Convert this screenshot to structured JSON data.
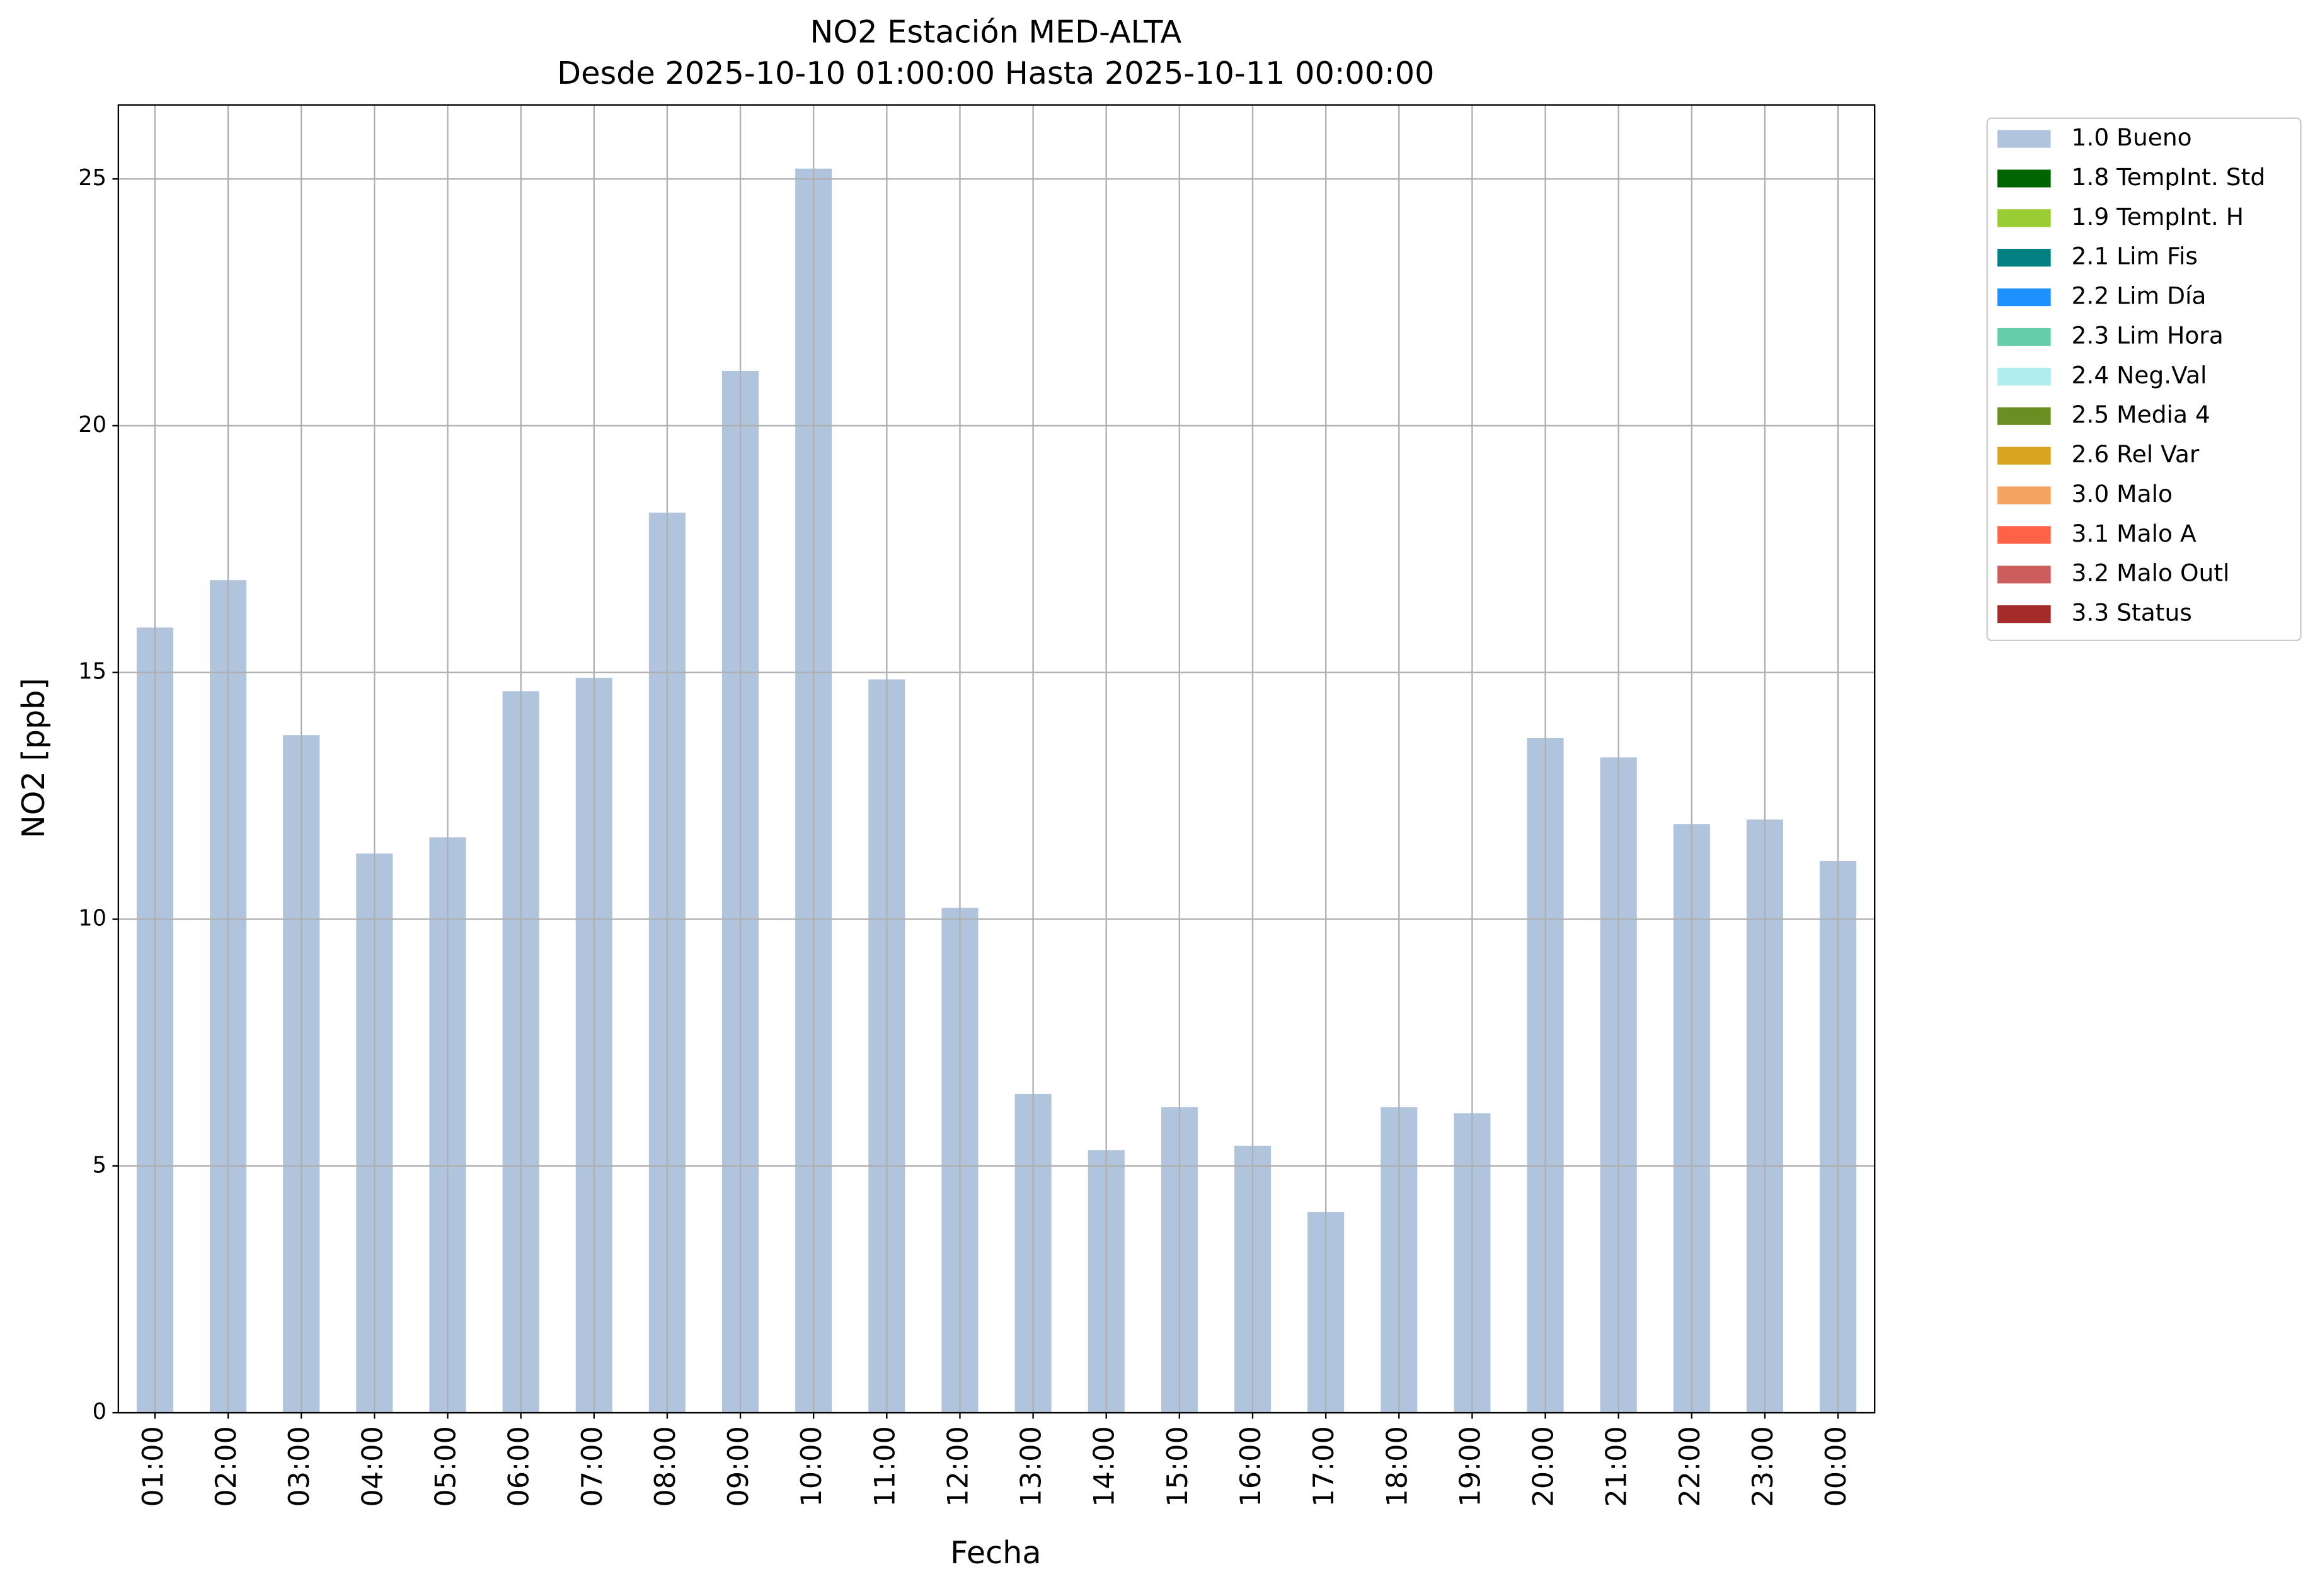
{
  "chart_data": {
    "type": "stacked_bar",
    "title": "NO2 Estación MED-ALTA",
    "subtitle": "Desde 2025-10-10 01:00:00 Hasta 2025-10-11 00:00:00",
    "x_label": "Fecha",
    "y_label": "NO2 [ppb]",
    "categories": [
      "01:00",
      "02:00",
      "03:00",
      "04:00",
      "05:00",
      "06:00",
      "07:00",
      "08:00",
      "09:00",
      "10:00",
      "11:00",
      "12:00",
      "13:00",
      "14:00",
      "15:00",
      "16:00",
      "17:00",
      "18:00",
      "19:00",
      "20:00",
      "21:00",
      "22:00",
      "23:00",
      "00:00"
    ],
    "series": [
      {
        "name": "1.0 Bueno",
        "color": "#b0c4de",
        "values": [
          15.91,
          16.87,
          13.73,
          11.33,
          11.66,
          14.62,
          14.89,
          18.24,
          21.11,
          25.21,
          14.86,
          10.23,
          6.46,
          5.32,
          6.19,
          5.41,
          4.07,
          6.19,
          6.07,
          13.67,
          13.28,
          11.93,
          12.02,
          11.18
        ]
      },
      {
        "name": "1.8 TempInt. Std",
        "color": "#006400",
        "values": [
          0,
          0,
          0,
          0,
          0,
          0,
          0,
          0,
          0,
          0,
          0,
          0,
          0,
          0,
          0,
          0,
          0,
          0,
          0,
          0,
          0,
          0,
          0,
          0
        ]
      },
      {
        "name": "1.9 TempInt. H",
        "color": "#9acd32",
        "values": [
          0,
          0,
          0,
          0,
          0,
          0,
          0,
          0,
          0,
          0,
          0,
          0,
          0,
          0,
          0,
          0,
          0,
          0,
          0,
          0,
          0,
          0,
          0,
          0
        ]
      },
      {
        "name": "2.1 Lim Fis",
        "color": "#008080",
        "values": [
          0,
          0,
          0,
          0,
          0,
          0,
          0,
          0,
          0,
          0,
          0,
          0,
          0,
          0,
          0,
          0,
          0,
          0,
          0,
          0,
          0,
          0,
          0,
          0
        ]
      },
      {
        "name": "2.2 Lim Día",
        "color": "#1e90ff",
        "values": [
          0,
          0,
          0,
          0,
          0,
          0,
          0,
          0,
          0,
          0,
          0,
          0,
          0,
          0,
          0,
          0,
          0,
          0,
          0,
          0,
          0,
          0,
          0,
          0
        ]
      },
      {
        "name": "2.3 Lim Hora",
        "color": "#66cdaa",
        "values": [
          0,
          0,
          0,
          0,
          0,
          0,
          0,
          0,
          0,
          0,
          0,
          0,
          0,
          0,
          0,
          0,
          0,
          0,
          0,
          0,
          0,
          0,
          0,
          0
        ]
      },
      {
        "name": "2.4 Neg.Val",
        "color": "#afeeee",
        "values": [
          0,
          0,
          0,
          0,
          0,
          0,
          0,
          0,
          0,
          0,
          0,
          0,
          0,
          0,
          0,
          0,
          0,
          0,
          0,
          0,
          0,
          0,
          0,
          0
        ]
      },
      {
        "name": "2.5 Media 4",
        "color": "#6b8e23",
        "values": [
          0,
          0,
          0,
          0,
          0,
          0,
          0,
          0,
          0,
          0,
          0,
          0,
          0,
          0,
          0,
          0,
          0,
          0,
          0,
          0,
          0,
          0,
          0,
          0
        ]
      },
      {
        "name": "2.6 Rel Var",
        "color": "#daa520",
        "values": [
          0,
          0,
          0,
          0,
          0,
          0,
          0,
          0,
          0,
          0,
          0,
          0,
          0,
          0,
          0,
          0,
          0,
          0,
          0,
          0,
          0,
          0,
          0,
          0
        ]
      },
      {
        "name": "3.0 Malo",
        "color": "#f4a460",
        "values": [
          0,
          0,
          0,
          0,
          0,
          0,
          0,
          0,
          0,
          0,
          0,
          0,
          0,
          0,
          0,
          0,
          0,
          0,
          0,
          0,
          0,
          0,
          0,
          0
        ]
      },
      {
        "name": "3.1 Malo A",
        "color": "#ff6347",
        "values": [
          0,
          0,
          0,
          0,
          0,
          0,
          0,
          0,
          0,
          0,
          0,
          0,
          0,
          0,
          0,
          0,
          0,
          0,
          0,
          0,
          0,
          0,
          0,
          0
        ]
      },
      {
        "name": "3.2 Malo Outl",
        "color": "#cd5c5c",
        "values": [
          0,
          0,
          0,
          0,
          0,
          0,
          0,
          0,
          0,
          0,
          0,
          0,
          0,
          0,
          0,
          0,
          0,
          0,
          0,
          0,
          0,
          0,
          0,
          0
        ]
      },
      {
        "name": "3.3 Status",
        "color": "#a52a2a",
        "values": [
          0,
          0,
          0,
          0,
          0,
          0,
          0,
          0,
          0,
          0,
          0,
          0,
          0,
          0,
          0,
          0,
          0,
          0,
          0,
          0,
          0,
          0,
          0,
          0
        ]
      }
    ],
    "ylim": [
      0,
      26.5
    ],
    "yticks": [
      0,
      5,
      10,
      15,
      20,
      25
    ],
    "grid": true,
    "legend": "outside-upper-right"
  }
}
